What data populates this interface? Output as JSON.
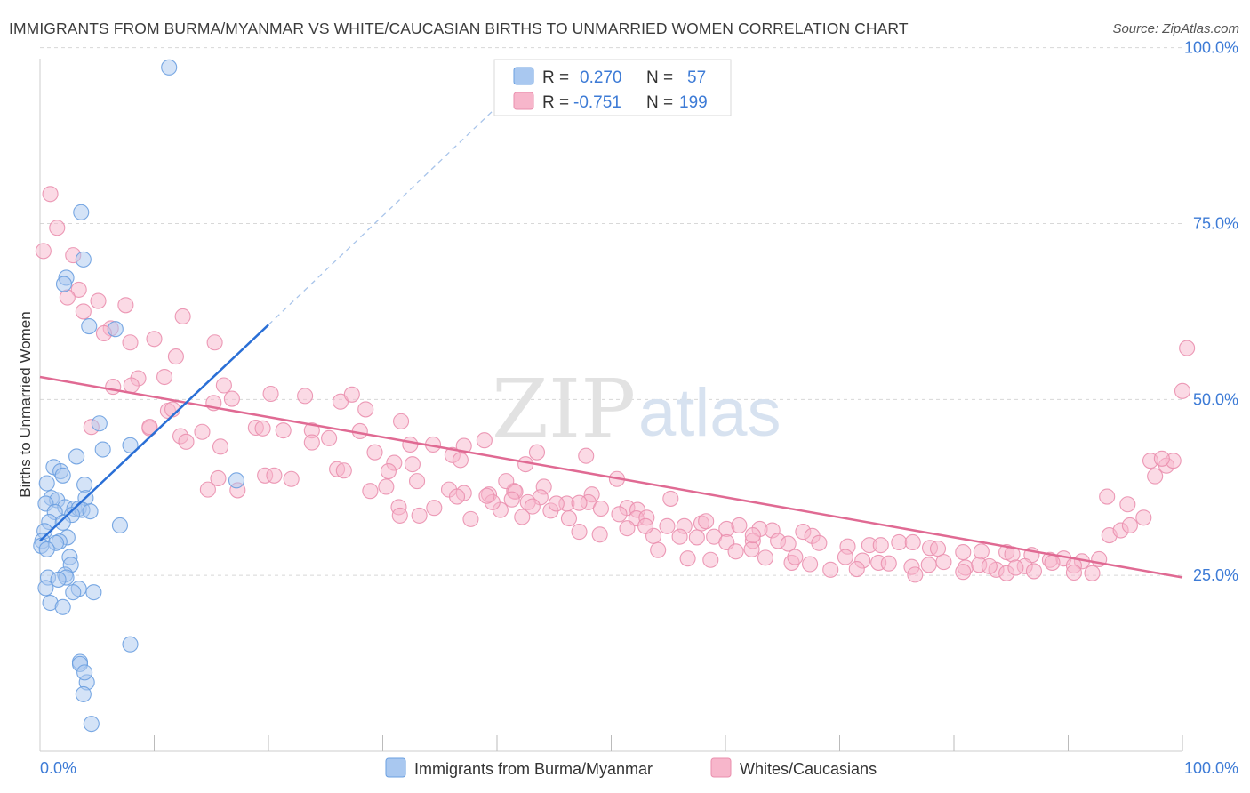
{
  "title": "IMMIGRANTS FROM BURMA/MYANMAR VS WHITE/CAUCASIAN BIRTHS TO UNMARRIED WOMEN CORRELATION CHART",
  "source": "Source: ZipAtlas.com",
  "watermark": {
    "zip": "ZIP",
    "atlas": "atlas"
  },
  "legend_top": [
    {
      "r_label": "R =",
      "r_value": "0.270",
      "n_label": "N =",
      "n_value": "57"
    },
    {
      "r_label": "R =",
      "r_value": "-0.751",
      "n_label": "N =",
      "n_value": "199"
    }
  ],
  "colors": {
    "blue_fill": "#a9c8f0",
    "blue_stroke": "#6a9fe0",
    "blue_line": "#2a6fd6",
    "pink_fill": "#f7b6cb",
    "pink_stroke": "#ea8fae",
    "pink_line": "#e06a93",
    "grid": "#d8d8d8",
    "tick_label": "#3d7bd6"
  },
  "chart_data": {
    "type": "scatter",
    "ylabel": "Births to Unmarried Women",
    "xlim": [
      0,
      100
    ],
    "ylim": [
      0,
      100
    ],
    "x_tick_labels": [
      {
        "value": 0,
        "label": "0.0%"
      },
      {
        "value": 100,
        "label": "100.0%"
      }
    ],
    "y_tick_labels": [
      {
        "value": 25,
        "label": "25.0%"
      },
      {
        "value": 50,
        "label": "50.0%"
      },
      {
        "value": 75,
        "label": "75.0%"
      },
      {
        "value": 100,
        "label": "100.0%"
      }
    ],
    "grid": true,
    "legend_placement": "bottom-center",
    "series": [
      {
        "name": "Immigrants from Burma/Myanmar",
        "color": "#a9c8f0",
        "trend": {
          "x": [
            0.0,
            20.0
          ],
          "y": [
            29.9,
            60.6
          ],
          "dashed_to": [
            40.0,
            91.6
          ]
        },
        "points": [
          [
            11.3,
            97.2
          ],
          [
            3.6,
            76.6
          ],
          [
            3.8,
            69.9
          ],
          [
            2.3,
            67.3
          ],
          [
            2.1,
            66.4
          ],
          [
            4.3,
            60.4
          ],
          [
            6.6,
            60.0
          ],
          [
            5.2,
            46.6
          ],
          [
            7.9,
            43.5
          ],
          [
            5.5,
            42.9
          ],
          [
            3.2,
            41.9
          ],
          [
            17.2,
            38.5
          ],
          [
            1.2,
            40.4
          ],
          [
            1.8,
            39.8
          ],
          [
            2.0,
            39.2
          ],
          [
            0.6,
            38.1
          ],
          [
            3.9,
            37.9
          ],
          [
            1.0,
            36.0
          ],
          [
            4.0,
            36.0
          ],
          [
            1.5,
            35.7
          ],
          [
            0.5,
            35.2
          ],
          [
            2.2,
            34.7
          ],
          [
            3.0,
            34.5
          ],
          [
            3.4,
            34.5
          ],
          [
            3.7,
            34.3
          ],
          [
            4.4,
            34.1
          ],
          [
            1.3,
            34.0
          ],
          [
            2.8,
            33.6
          ],
          [
            0.8,
            32.6
          ],
          [
            2.0,
            32.5
          ],
          [
            7.0,
            32.1
          ],
          [
            0.4,
            31.3
          ],
          [
            0.2,
            29.9
          ],
          [
            2.4,
            30.4
          ],
          [
            1.7,
            29.8
          ],
          [
            1.4,
            29.6
          ],
          [
            0.1,
            29.2
          ],
          [
            0.6,
            28.7
          ],
          [
            2.6,
            27.6
          ],
          [
            2.7,
            26.5
          ],
          [
            2.2,
            25.1
          ],
          [
            2.3,
            24.7
          ],
          [
            0.7,
            24.7
          ],
          [
            1.6,
            24.4
          ],
          [
            0.5,
            23.2
          ],
          [
            3.4,
            23.1
          ],
          [
            2.9,
            22.6
          ],
          [
            4.7,
            22.6
          ],
          [
            0.9,
            21.1
          ],
          [
            2.0,
            20.5
          ],
          [
            7.9,
            15.2
          ],
          [
            3.5,
            12.7
          ],
          [
            3.5,
            12.4
          ],
          [
            4.1,
            9.8
          ],
          [
            3.8,
            8.1
          ],
          [
            4.5,
            3.9
          ],
          [
            3.9,
            11.2
          ]
        ]
      },
      {
        "name": "Whites/Caucasians",
        "color": "#f7b6cb",
        "trend": {
          "x": [
            0.0,
            100.0
          ],
          "y": [
            53.2,
            24.7
          ]
        },
        "points": [
          [
            0.9,
            79.2
          ],
          [
            0.3,
            71.1
          ],
          [
            1.5,
            74.4
          ],
          [
            2.9,
            70.5
          ],
          [
            3.4,
            65.6
          ],
          [
            2.4,
            64.5
          ],
          [
            5.1,
            64.0
          ],
          [
            7.5,
            63.4
          ],
          [
            3.8,
            62.5
          ],
          [
            12.5,
            61.8
          ],
          [
            6.2,
            60.1
          ],
          [
            5.6,
            59.4
          ],
          [
            10.0,
            58.6
          ],
          [
            7.9,
            58.1
          ],
          [
            15.3,
            58.1
          ],
          [
            11.9,
            56.1
          ],
          [
            8.6,
            53.0
          ],
          [
            10.9,
            53.2
          ],
          [
            8.0,
            52.0
          ],
          [
            16.1,
            52.0
          ],
          [
            6.4,
            51.8
          ],
          [
            20.2,
            50.8
          ],
          [
            23.2,
            50.5
          ],
          [
            26.3,
            49.7
          ],
          [
            15.2,
            49.5
          ],
          [
            16.8,
            50.1
          ],
          [
            27.3,
            50.7
          ],
          [
            11.2,
            48.4
          ],
          [
            11.6,
            48.6
          ],
          [
            28.5,
            48.6
          ],
          [
            4.5,
            46.1
          ],
          [
            9.6,
            45.9
          ],
          [
            9.6,
            46.1
          ],
          [
            14.2,
            45.4
          ],
          [
            12.3,
            44.8
          ],
          [
            18.9,
            46.0
          ],
          [
            19.5,
            45.9
          ],
          [
            21.3,
            45.6
          ],
          [
            23.8,
            45.6
          ],
          [
            28.0,
            45.5
          ],
          [
            31.6,
            46.9
          ],
          [
            37.1,
            43.4
          ],
          [
            25.3,
            44.5
          ],
          [
            12.8,
            44.0
          ],
          [
            15.8,
            43.3
          ],
          [
            23.8,
            43.9
          ],
          [
            34.4,
            43.6
          ],
          [
            38.9,
            44.2
          ],
          [
            29.3,
            42.5
          ],
          [
            32.4,
            43.6
          ],
          [
            43.5,
            42.5
          ],
          [
            47.8,
            42.0
          ],
          [
            36.1,
            42.1
          ],
          [
            31.0,
            41.0
          ],
          [
            32.6,
            40.8
          ],
          [
            26.0,
            40.1
          ],
          [
            26.6,
            39.9
          ],
          [
            36.8,
            41.4
          ],
          [
            42.5,
            40.8
          ],
          [
            30.5,
            39.8
          ],
          [
            19.7,
            39.2
          ],
          [
            20.5,
            39.2
          ],
          [
            15.6,
            38.8
          ],
          [
            22.0,
            38.7
          ],
          [
            33.0,
            38.4
          ],
          [
            30.3,
            37.6
          ],
          [
            14.7,
            37.2
          ],
          [
            17.3,
            37.1
          ],
          [
            28.9,
            37.0
          ],
          [
            41.5,
            37.0
          ],
          [
            40.8,
            38.4
          ],
          [
            44.1,
            37.6
          ],
          [
            50.5,
            38.7
          ],
          [
            35.8,
            37.2
          ],
          [
            37.1,
            36.7
          ],
          [
            36.5,
            36.2
          ],
          [
            39.3,
            36.5
          ],
          [
            41.6,
            36.9
          ],
          [
            43.8,
            36.1
          ],
          [
            48.3,
            36.5
          ],
          [
            48.0,
            35.4
          ],
          [
            46.1,
            35.2
          ],
          [
            51.4,
            34.6
          ],
          [
            55.2,
            35.9
          ],
          [
            52.3,
            34.3
          ],
          [
            41.3,
            35.8
          ],
          [
            42.7,
            35.4
          ],
          [
            43.1,
            34.8
          ],
          [
            44.7,
            34.2
          ],
          [
            45.2,
            35.2
          ],
          [
            47.2,
            35.3
          ],
          [
            49.1,
            34.5
          ],
          [
            50.7,
            33.7
          ],
          [
            40.3,
            34.3
          ],
          [
            39.6,
            35.4
          ],
          [
            34.5,
            34.6
          ],
          [
            31.4,
            34.7
          ],
          [
            31.5,
            33.5
          ],
          [
            33.2,
            33.5
          ],
          [
            39.1,
            36.3
          ],
          [
            37.7,
            33.0
          ],
          [
            42.2,
            33.3
          ],
          [
            46.3,
            33.1
          ],
          [
            52.2,
            33.1
          ],
          [
            53.1,
            33.2
          ],
          [
            54.9,
            32.0
          ],
          [
            56.4,
            32.0
          ],
          [
            57.9,
            32.4
          ],
          [
            58.3,
            32.7
          ],
          [
            60.1,
            31.6
          ],
          [
            61.2,
            32.1
          ],
          [
            63.0,
            31.6
          ],
          [
            64.1,
            31.4
          ],
          [
            66.8,
            31.2
          ],
          [
            67.6,
            30.6
          ],
          [
            47.2,
            31.2
          ],
          [
            49.0,
            30.8
          ],
          [
            51.4,
            31.7
          ],
          [
            53.7,
            30.6
          ],
          [
            56.0,
            30.5
          ],
          [
            57.5,
            30.4
          ],
          [
            59.0,
            30.5
          ],
          [
            60.1,
            29.7
          ],
          [
            62.4,
            29.9
          ],
          [
            64.6,
            29.9
          ],
          [
            65.5,
            29.5
          ],
          [
            68.2,
            29.6
          ],
          [
            70.7,
            29.1
          ],
          [
            72.6,
            29.3
          ],
          [
            73.6,
            29.3
          ],
          [
            75.2,
            29.7
          ],
          [
            76.4,
            29.7
          ],
          [
            77.9,
            28.9
          ],
          [
            78.6,
            28.8
          ],
          [
            80.8,
            28.3
          ],
          [
            82.4,
            28.4
          ],
          [
            84.6,
            28.3
          ],
          [
            85.1,
            28.0
          ],
          [
            86.8,
            27.9
          ],
          [
            88.4,
            27.2
          ],
          [
            89.6,
            27.4
          ],
          [
            91.2,
            27.0
          ],
          [
            92.7,
            27.3
          ],
          [
            54.1,
            28.6
          ],
          [
            56.7,
            27.4
          ],
          [
            58.7,
            27.2
          ],
          [
            60.9,
            28.4
          ],
          [
            62.3,
            28.7
          ],
          [
            63.5,
            27.5
          ],
          [
            65.8,
            26.8
          ],
          [
            67.4,
            26.6
          ],
          [
            69.2,
            25.8
          ],
          [
            70.5,
            27.6
          ],
          [
            72.0,
            27.1
          ],
          [
            73.4,
            26.8
          ],
          [
            74.3,
            26.7
          ],
          [
            76.3,
            26.2
          ],
          [
            77.8,
            26.5
          ],
          [
            79.1,
            26.9
          ],
          [
            81.0,
            26.1
          ],
          [
            82.2,
            26.5
          ],
          [
            83.7,
            25.8
          ],
          [
            86.2,
            26.3
          ],
          [
            88.6,
            26.8
          ],
          [
            90.5,
            26.4
          ],
          [
            62.4,
            30.7
          ],
          [
            66.1,
            27.6
          ],
          [
            71.5,
            25.9
          ],
          [
            76.6,
            25.1
          ],
          [
            80.8,
            25.5
          ],
          [
            83.1,
            26.3
          ],
          [
            84.6,
            25.3
          ],
          [
            85.4,
            26.1
          ],
          [
            87.0,
            25.6
          ],
          [
            90.5,
            25.4
          ],
          [
            92.1,
            25.3
          ],
          [
            93.6,
            30.7
          ],
          [
            94.6,
            31.4
          ],
          [
            95.4,
            32.1
          ],
          [
            96.6,
            33.2
          ],
          [
            97.6,
            39.1
          ],
          [
            98.6,
            40.6
          ],
          [
            99.2,
            41.3
          ],
          [
            100.0,
            51.2
          ],
          [
            100.4,
            57.3
          ],
          [
            93.4,
            36.2
          ],
          [
            95.2,
            35.1
          ],
          [
            97.2,
            41.3
          ],
          [
            98.2,
            41.6
          ],
          [
            53.0,
            32.0
          ]
        ]
      }
    ]
  }
}
